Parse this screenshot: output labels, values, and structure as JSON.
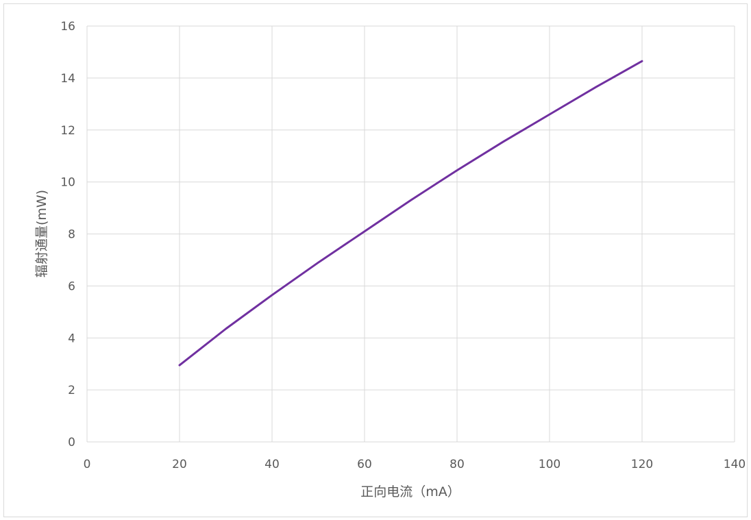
{
  "chart_data": {
    "type": "line",
    "title": "",
    "xlabel": "正向电流（mA）",
    "ylabel": "辐射通量(mW)",
    "xlim": [
      0,
      140
    ],
    "ylim": [
      0,
      16
    ],
    "x_ticks": [
      0,
      20,
      40,
      60,
      80,
      100,
      120,
      140
    ],
    "y_ticks": [
      0,
      2,
      4,
      6,
      8,
      10,
      12,
      14,
      16
    ],
    "x_tick_labels": [
      "0",
      "20",
      "40",
      "60",
      "80",
      "100",
      "120",
      "140"
    ],
    "y_tick_labels": [
      "0",
      "2",
      "4",
      "6",
      "8",
      "10",
      "12",
      "14",
      "16"
    ],
    "grid": true,
    "legend": "none",
    "series": [
      {
        "color": "#7030a0",
        "x": [
          20,
          30,
          40,
          50,
          60,
          70,
          80,
          90,
          100,
          110,
          120
        ],
        "y": [
          2.95,
          4.35,
          5.65,
          6.9,
          8.1,
          9.3,
          10.45,
          11.55,
          12.6,
          13.65,
          14.65
        ]
      }
    ]
  },
  "style": {
    "grid_color": "#d9d9d9",
    "axis_text_color": "#595959"
  }
}
